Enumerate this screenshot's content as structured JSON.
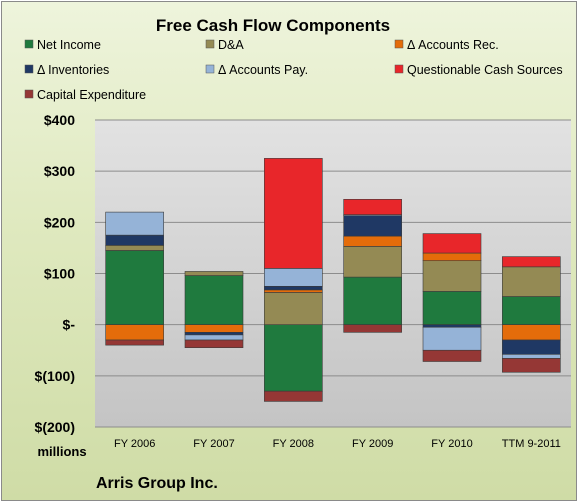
{
  "chart_data": {
    "type": "bar",
    "stacked": true,
    "title": "Free Cash Flow Components",
    "units_label": "millions",
    "footer": "Arris Group Inc.",
    "ylim": [
      -200,
      400
    ],
    "yticks": [
      -200,
      -100,
      0,
      100,
      200,
      300,
      400
    ],
    "ytick_labels": [
      "$(200)",
      "$(100)",
      "$-",
      "$100",
      "$200",
      "$300",
      "$400"
    ],
    "categories": [
      "FY 2006",
      "FY 2007",
      "FY 2008",
      "FY 2009",
      "FY 2010",
      "TTM 9-2011"
    ],
    "series": [
      {
        "name": "Net Income",
        "color": "#1f7a3e",
        "values": [
          145,
          96,
          -130,
          93,
          65,
          55
        ]
      },
      {
        "name": "D&A",
        "color": "#948a54",
        "values": [
          10,
          8,
          63,
          60,
          60,
          58
        ]
      },
      {
        "name": "Δ Accounts Rec.",
        "color": "#e46c0a",
        "values": [
          -30,
          -15,
          5,
          20,
          15,
          -30
        ]
      },
      {
        "name": "Δ Inventories",
        "color": "#1f3864",
        "values": [
          20,
          -5,
          7,
          40,
          -5,
          -28
        ]
      },
      {
        "name": "Δ Accounts Pay.",
        "color": "#95b3d7",
        "values": [
          45,
          -10,
          35,
          2,
          -45,
          -8
        ]
      },
      {
        "name": "Questionable Cash Sources",
        "color": "#e8262a",
        "values": [
          0,
          0,
          215,
          30,
          38,
          20
        ]
      },
      {
        "name": "Capital Expenditure",
        "color": "#953735",
        "values": [
          -10,
          -15,
          -20,
          -15,
          -22,
          -27
        ]
      }
    ],
    "grid": true,
    "legend_position": "top"
  }
}
